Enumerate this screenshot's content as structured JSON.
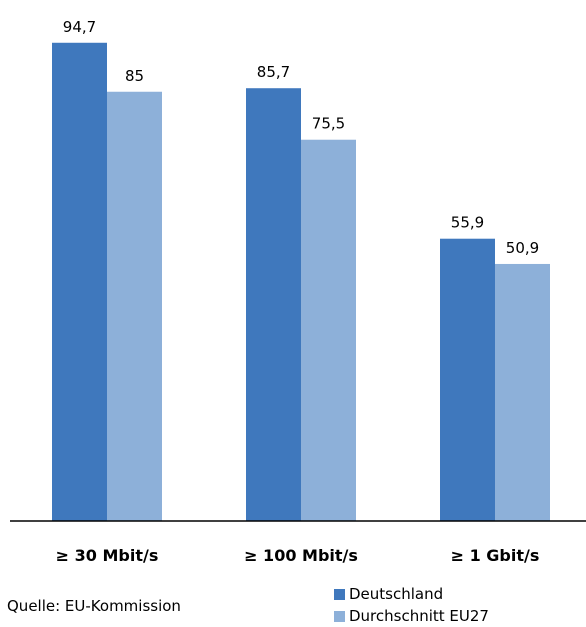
{
  "chart_data": {
    "type": "bar",
    "categories": [
      "≥ 30 Mbit/s",
      "≥ 100 Mbit/s",
      "≥ 1 Gbit/s"
    ],
    "series": [
      {
        "name": "Deutschland",
        "values": [
          94.7,
          85.7,
          55.9
        ],
        "labels": [
          "94,7",
          "85,7",
          "55,9"
        ],
        "color": "#3f78bd"
      },
      {
        "name": "Durchschnitt EU27",
        "values": [
          85,
          75.5,
          50.9
        ],
        "labels": [
          "85",
          "75,5",
          "50,9"
        ],
        "color": "#8db0d9"
      }
    ],
    "ylim": [
      0,
      100
    ],
    "grid": false,
    "legend_position": "bottom-right"
  },
  "source": "Quelle: EU-Kommission"
}
